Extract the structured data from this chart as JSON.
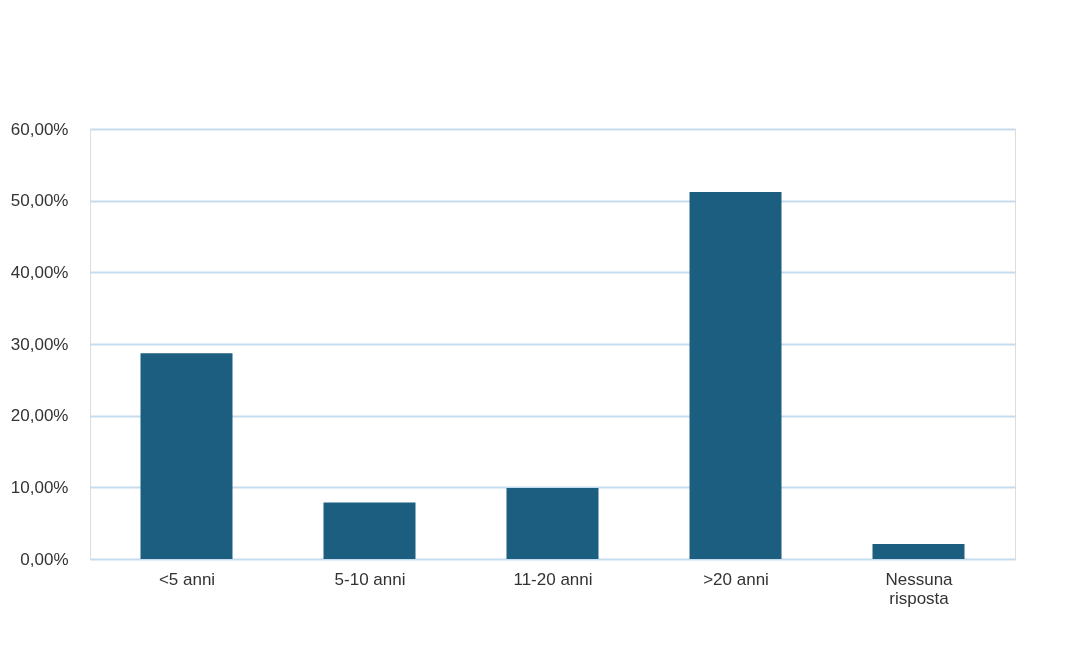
{
  "chart_data": {
    "type": "bar",
    "categories": [
      "<5 anni",
      "5-10 anni",
      "11-20 anni",
      ">20 anni",
      "Nessuna risposta"
    ],
    "values": [
      28.7,
      7.9,
      9.9,
      51.2,
      2.1
    ],
    "color": "#1b5e80",
    "ylim": [
      0,
      60
    ],
    "yticks": [
      {
        "value": 0,
        "label": "0,00%"
      },
      {
        "value": 10,
        "label": "10,00%"
      },
      {
        "value": 20,
        "label": "20,00%"
      },
      {
        "value": 30,
        "label": "30,00%"
      },
      {
        "value": 40,
        "label": "40,00%"
      },
      {
        "value": 50,
        "label": "50,00%"
      },
      {
        "value": 60,
        "label": "60,00%"
      }
    ],
    "grid": "y"
  }
}
